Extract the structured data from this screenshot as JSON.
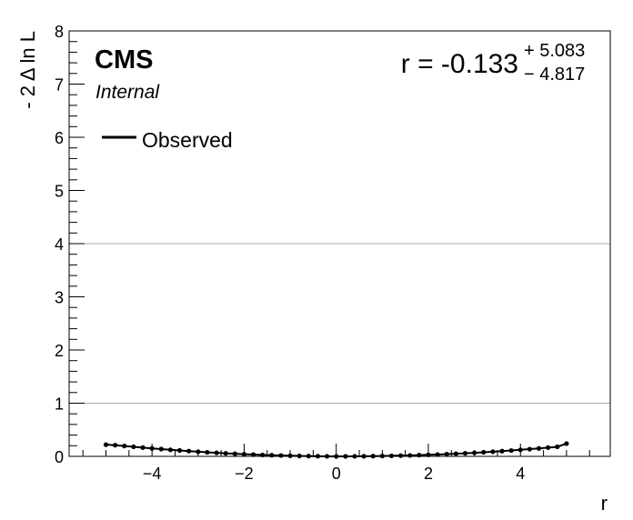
{
  "chart_data": {
    "type": "line",
    "xlabel": "r",
    "ylabel": "- 2 Δ ln L",
    "xlim": [
      -5.8,
      5.95
    ],
    "ylim": [
      0,
      8
    ],
    "x_ticks": [
      -4,
      -2,
      0,
      2,
      4
    ],
    "x_tick_labels": [
      "−4",
      "−2",
      "0",
      "2",
      "4"
    ],
    "y_ticks": [
      0,
      1,
      2,
      3,
      4,
      5,
      6,
      7,
      8
    ],
    "y_tick_labels": [
      "0",
      "1",
      "2",
      "3",
      "4",
      "5",
      "6",
      "7",
      "8"
    ],
    "reference_lines": [
      1,
      4
    ],
    "experiment_label": "CMS",
    "status_label": "Internal",
    "result": {
      "prefix": "r = -0.133",
      "upper": "+ 5.083",
      "lower": "− 4.817"
    },
    "legend": {
      "position": "top-left",
      "entries": [
        "Observed"
      ]
    },
    "series": [
      {
        "name": "Observed",
        "color": "#000000",
        "x": [
          -5.0,
          -4.8,
          -4.6,
          -4.4,
          -4.2,
          -4.0,
          -3.8,
          -3.6,
          -3.4,
          -3.2,
          -3.0,
          -2.8,
          -2.6,
          -2.4,
          -2.2,
          -2.0,
          -1.8,
          -1.6,
          -1.4,
          -1.2,
          -1.0,
          -0.8,
          -0.6,
          -0.4,
          -0.2,
          0.0,
          0.2,
          0.4,
          0.6,
          0.8,
          1.0,
          1.2,
          1.4,
          1.6,
          1.8,
          2.0,
          2.2,
          2.4,
          2.6,
          2.8,
          3.0,
          3.2,
          3.4,
          3.6,
          3.8,
          4.0,
          4.2,
          4.4,
          4.6,
          4.8,
          5.0
        ],
        "y": [
          0.22,
          0.21,
          0.195,
          0.18,
          0.165,
          0.15,
          0.137,
          0.123,
          0.111,
          0.099,
          0.087,
          0.076,
          0.066,
          0.057,
          0.049,
          0.041,
          0.034,
          0.027,
          0.021,
          0.016,
          0.012,
          0.008,
          0.005,
          0.003,
          0.001,
          0.0,
          0.0,
          0.001,
          0.002,
          0.004,
          0.007,
          0.01,
          0.014,
          0.018,
          0.023,
          0.029,
          0.035,
          0.042,
          0.05,
          0.058,
          0.067,
          0.077,
          0.087,
          0.098,
          0.11,
          0.123,
          0.136,
          0.15,
          0.165,
          0.18,
          0.24
        ]
      }
    ]
  }
}
